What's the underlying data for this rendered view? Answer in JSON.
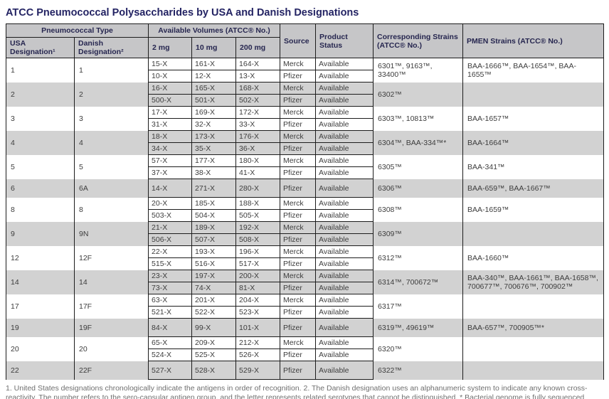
{
  "title": "ATCC Pneumococcal Polysaccharides by USA and Danish Designations",
  "table": {
    "header": {
      "group_type": "Pneumococcal Type",
      "group_volumes": "Available Volumes (ATCC® No.)",
      "usa": "USA Designation¹",
      "danish": "Danish Designation²",
      "mg2": "2 mg",
      "mg10": "10 mg",
      "mg200": "200 mg",
      "source": "Source",
      "status": "Product Status",
      "corresponding": "Corresponding Strains (ATCC® No.)",
      "pmen": "PMEN Strains (ATCC® No.)"
    },
    "groups": [
      {
        "usa": "1",
        "danish": "1",
        "rows": [
          [
            "15-X",
            "161-X",
            "164-X",
            "Merck",
            "Available"
          ],
          [
            "10-X",
            "12-X",
            "13-X",
            "Pfizer",
            "Available"
          ]
        ],
        "corresponding": "6301™, 9163™, 33400™",
        "pmen": "BAA-1666™, BAA-1654™, BAA-1655™"
      },
      {
        "usa": "2",
        "danish": "2",
        "rows": [
          [
            "16-X",
            "165-X",
            "168-X",
            "Merck",
            "Available"
          ],
          [
            "500-X",
            "501-X",
            "502-X",
            "Pfizer",
            "Available"
          ]
        ],
        "corresponding": "6302™",
        "pmen": ""
      },
      {
        "usa": "3",
        "danish": "3",
        "rows": [
          [
            "17-X",
            "169-X",
            "172-X",
            "Merck",
            "Available"
          ],
          [
            "31-X",
            "32-X",
            "33-X",
            "Pfizer",
            "Available"
          ]
        ],
        "corresponding": "6303™, 10813™",
        "pmen": "BAA-1657™"
      },
      {
        "usa": "4",
        "danish": "4",
        "rows": [
          [
            "18-X",
            "173-X",
            "176-X",
            "Merck",
            "Available"
          ],
          [
            "34-X",
            "35-X",
            "36-X",
            "Pfizer",
            "Available"
          ]
        ],
        "corresponding": "6304™, BAA-334™*",
        "pmen": "BAA-1664™"
      },
      {
        "usa": "5",
        "danish": "5",
        "rows": [
          [
            "57-X",
            "177-X",
            "180-X",
            "Merck",
            "Available"
          ],
          [
            "37-X",
            "38-X",
            "41-X",
            "Pfizer",
            "Available"
          ]
        ],
        "corresponding": "6305™",
        "pmen": "BAA-341™"
      },
      {
        "usa": "6",
        "danish": "6A",
        "rows": [
          [
            "14-X",
            "271-X",
            "280-X",
            "Pfizer",
            "Available"
          ]
        ],
        "corresponding": "6306™",
        "pmen": "BAA-659™, BAA-1667™"
      },
      {
        "usa": "8",
        "danish": "8",
        "rows": [
          [
            "20-X",
            "185-X",
            "188-X",
            "Merck",
            "Available"
          ],
          [
            "503-X",
            "504-X",
            "505-X",
            "Pfizer",
            "Available"
          ]
        ],
        "corresponding": "6308™",
        "pmen": "BAA-1659™"
      },
      {
        "usa": "9",
        "danish": "9N",
        "rows": [
          [
            "21-X",
            "189-X",
            "192-X",
            "Merck",
            "Available"
          ],
          [
            "506-X",
            "507-X",
            "508-X",
            "Pfizer",
            "Available"
          ]
        ],
        "corresponding": "6309™",
        "pmen": ""
      },
      {
        "usa": "12",
        "danish": "12F",
        "rows": [
          [
            "22-X",
            "193-X",
            "196-X",
            "Merck",
            "Available"
          ],
          [
            "515-X",
            "516-X",
            "517-X",
            "Pfizer",
            "Available"
          ]
        ],
        "corresponding": "6312™",
        "pmen": "BAA-1660™"
      },
      {
        "usa": "14",
        "danish": "14",
        "rows": [
          [
            "23-X",
            "197-X",
            "200-X",
            "Merck",
            "Available"
          ],
          [
            "73-X",
            "74-X",
            "81-X",
            "Pfizer",
            "Available"
          ]
        ],
        "corresponding": "6314™, 700672™",
        "pmen": "BAA-340™, BAA-1661™, BAA-1658™, 700677™, 700676™, 700902™"
      },
      {
        "usa": "17",
        "danish": "17F",
        "rows": [
          [
            "63-X",
            "201-X",
            "204-X",
            "Merck",
            "Available"
          ],
          [
            "521-X",
            "522-X",
            "523-X",
            "Pfizer",
            "Available"
          ]
        ],
        "corresponding": "6317™",
        "pmen": ""
      },
      {
        "usa": "19",
        "danish": "19F",
        "rows": [
          [
            "84-X",
            "99-X",
            "101-X",
            "Pfizer",
            "Available"
          ]
        ],
        "corresponding": "6319™, 49619™",
        "pmen": "BAA-657™, 700905™*"
      },
      {
        "usa": "20",
        "danish": "20",
        "rows": [
          [
            "65-X",
            "209-X",
            "212-X",
            "Merck",
            "Available"
          ],
          [
            "524-X",
            "525-X",
            "526-X",
            "Pfizer",
            "Available"
          ]
        ],
        "corresponding": "6320™",
        "pmen": ""
      },
      {
        "usa": "22",
        "danish": "22F",
        "rows": [
          [
            "527-X",
            "528-X",
            "529-X",
            "Pfizer",
            "Available"
          ]
        ],
        "corresponding": "6322™",
        "pmen": ""
      }
    ]
  },
  "footnote": "1. United States designations chronologically indicate the antigens in order of recognition. 2. The Danish designation uses an alphanumeric system to indicate any known cross-reactivity. The number refers to the sero-capsular antigen group, and the letter represents related serotypes that  cannot be distinguished. * Bacterial genome is fully sequenced"
}
